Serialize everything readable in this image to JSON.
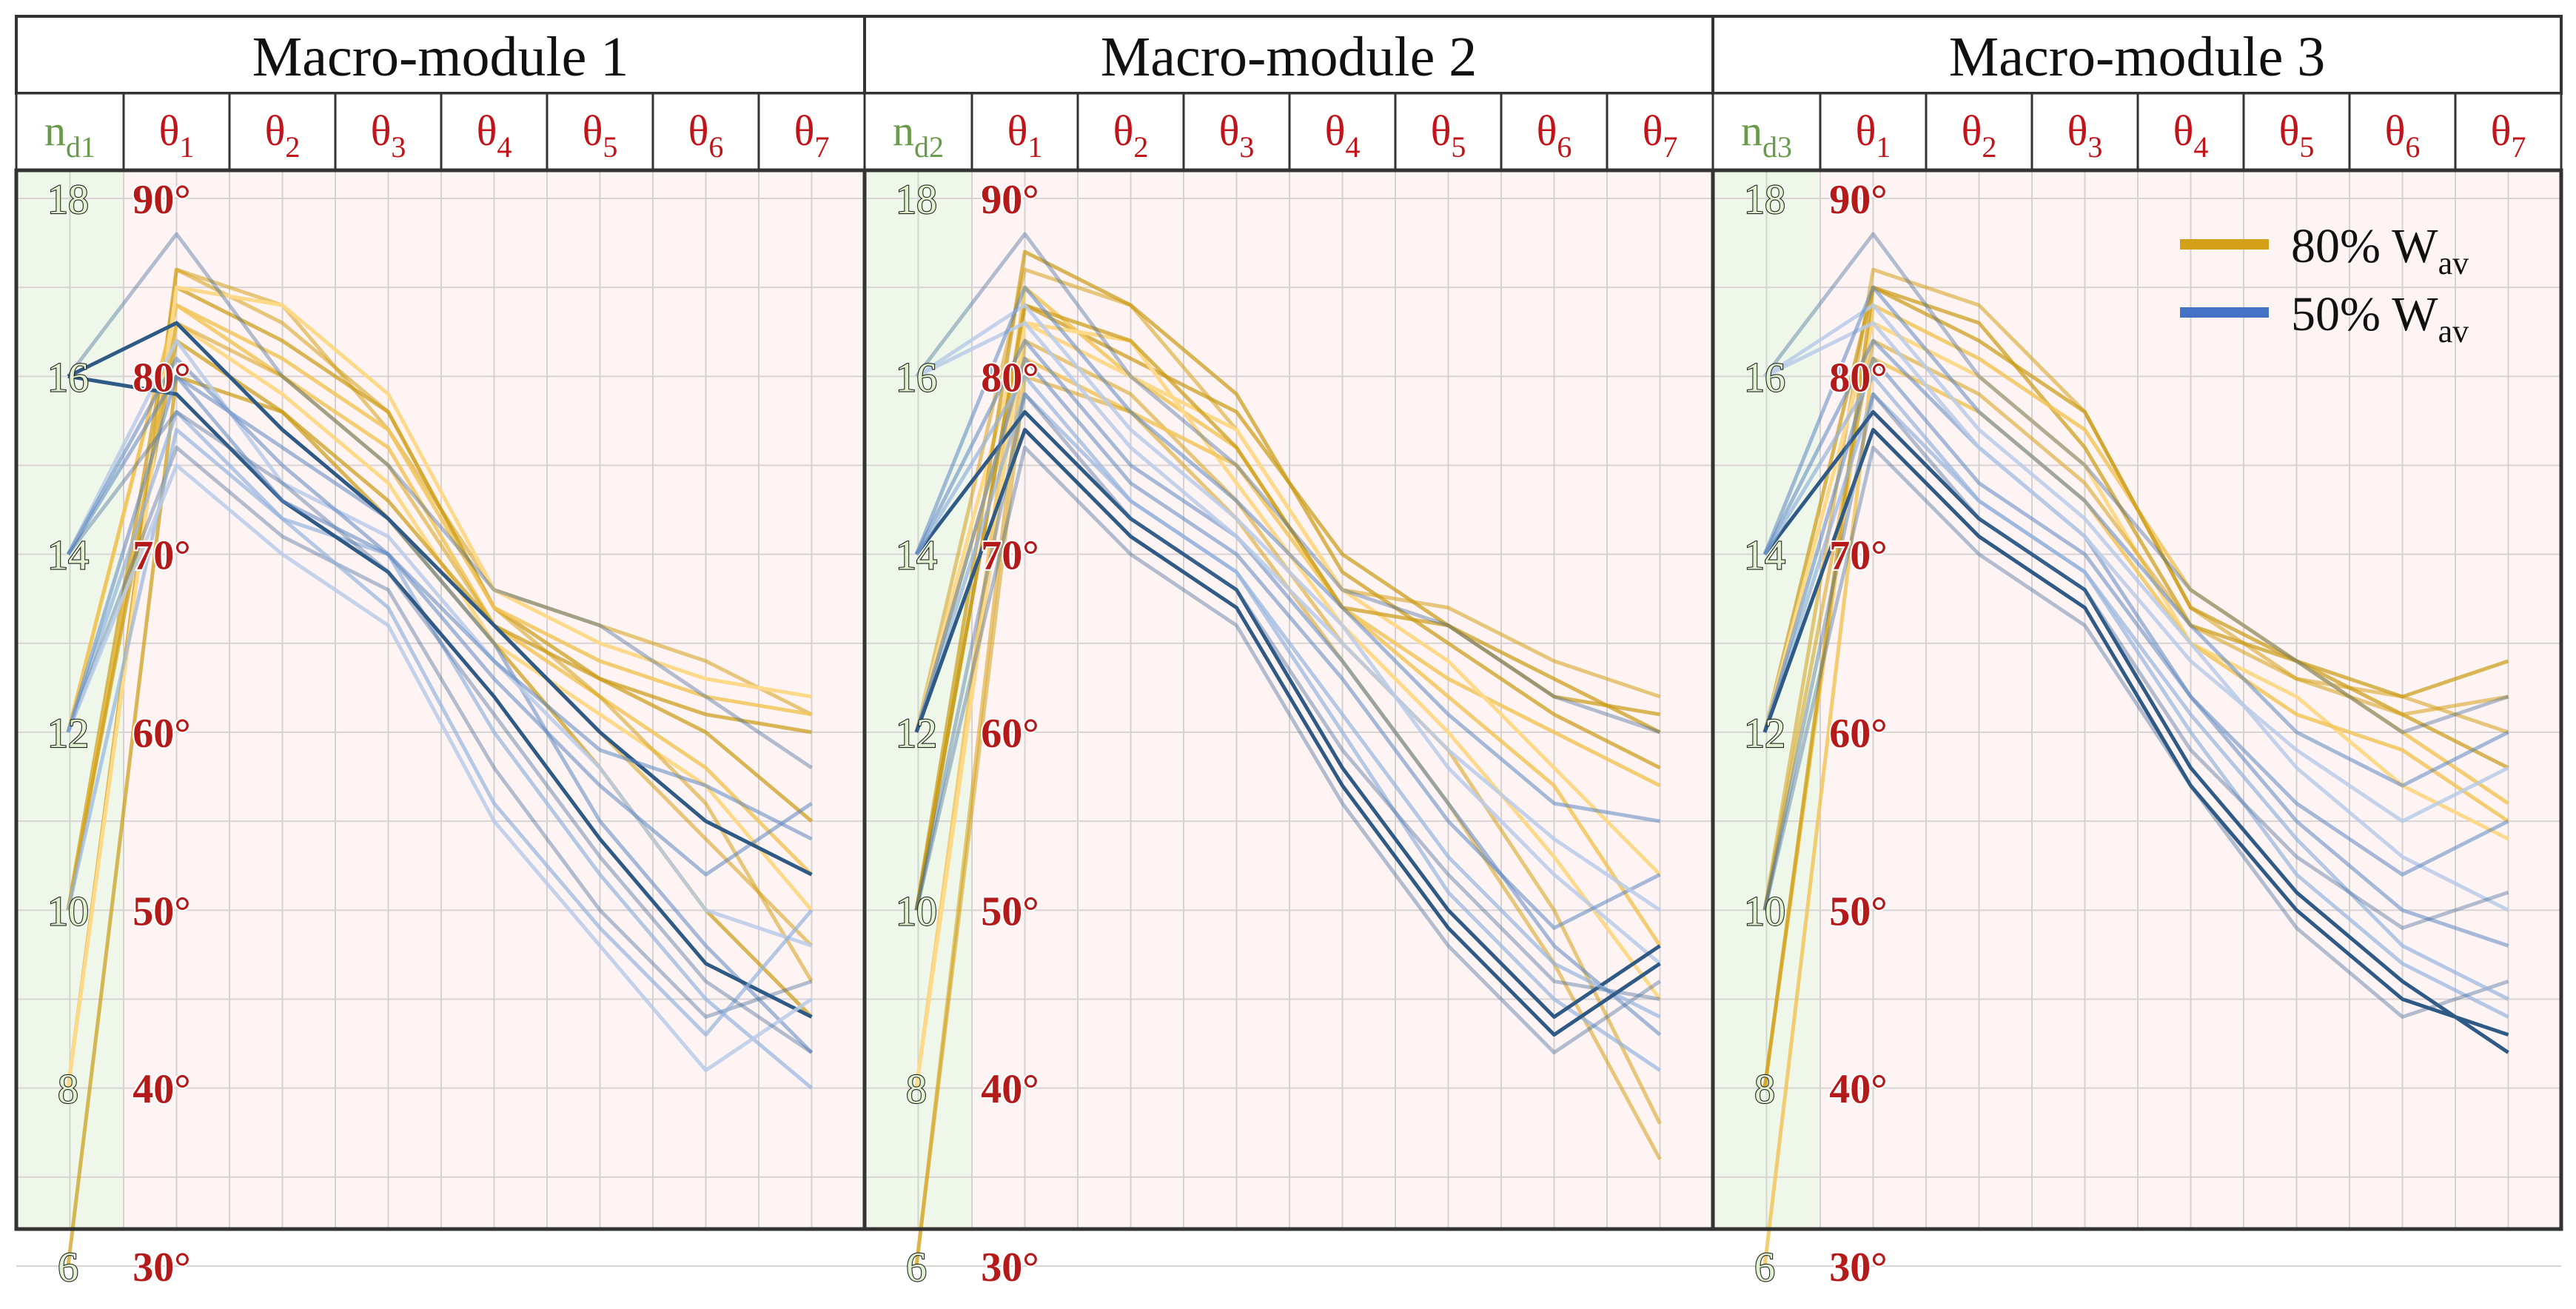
{
  "chart_data": {
    "type": "parallel-coordinates",
    "title": "",
    "panels": [
      {
        "title": "Macro-module 1",
        "first_axis": {
          "base": "n",
          "sub": "d1"
        }
      },
      {
        "title": "Macro-module 2",
        "first_axis": {
          "base": "n",
          "sub": "d2"
        }
      },
      {
        "title": "Macro-module 3",
        "first_axis": {
          "base": "n",
          "sub": "d3"
        }
      }
    ],
    "angle_axes": [
      {
        "base": "θ",
        "sub": "1"
      },
      {
        "base": "θ",
        "sub": "2"
      },
      {
        "base": "θ",
        "sub": "3"
      },
      {
        "base": "θ",
        "sub": "4"
      },
      {
        "base": "θ",
        "sub": "5"
      },
      {
        "base": "θ",
        "sub": "6"
      },
      {
        "base": "θ",
        "sub": "7"
      }
    ],
    "n_ticks": [
      "6",
      "8",
      "10",
      "12",
      "14",
      "16",
      "18"
    ],
    "n_range": [
      6,
      18
    ],
    "angle_ticks": [
      "30°",
      "40°",
      "50°",
      "60°",
      "70°",
      "80°",
      "90°"
    ],
    "angle_range": [
      30,
      90
    ],
    "legend": [
      {
        "label": "80% W",
        "sub": "av",
        "color": "#d4a017"
      },
      {
        "label": "50% W",
        "sub": "av",
        "color": "#4472c4"
      }
    ],
    "series": [
      {
        "name": "80% Wav",
        "color": "#d4a017",
        "panels": [
          [
            [
              8,
              86,
              84,
              77,
              68,
              66,
              64,
              61
            ],
            [
              10,
              85,
              82,
              78,
              67,
              63,
              60,
              55
            ],
            [
              12,
              84,
              80,
              76,
              66,
              62,
              58,
              52
            ],
            [
              10,
              83,
              79,
              74,
              65,
              61,
              57,
              50
            ],
            [
              8,
              86,
              83,
              78,
              67,
              62,
              56,
              46
            ],
            [
              10,
              82,
              78,
              73,
              66,
              63,
              61,
              60
            ],
            [
              12,
              84,
              81,
              77,
              67,
              64,
              62,
              61
            ],
            [
              8,
              85,
              84,
              79,
              68,
              65,
              63,
              62
            ],
            [
              10,
              83,
              80,
              75,
              66,
              60,
              54,
              48
            ],
            [
              6,
              80,
              78,
              72,
              65,
              58,
              50,
              44
            ]
          ],
          [
            [
              12,
              86,
              84,
              77,
              68,
              67,
              64,
              62
            ],
            [
              10,
              84,
              81,
              78,
              70,
              66,
              63,
              60
            ],
            [
              8,
              85,
              80,
              76,
              67,
              62,
              57,
              48
            ],
            [
              12,
              83,
              82,
              74,
              66,
              60,
              53,
              45
            ],
            [
              6,
              82,
              79,
              73,
              65,
              59,
              50,
              38
            ],
            [
              10,
              87,
              84,
              79,
              69,
              65,
              61,
              58
            ],
            [
              12,
              81,
              78,
              75,
              67,
              63,
              60,
              57
            ],
            [
              8,
              83,
              80,
              77,
              68,
              64,
              58,
              52
            ],
            [
              6,
              80,
              78,
              72,
              64,
              56,
              47,
              36
            ],
            [
              10,
              84,
              82,
              76,
              67,
              66,
              62,
              61
            ]
          ],
          [
            [
              10,
              86,
              84,
              78,
              67,
              63,
              62,
              60
            ],
            [
              12,
              85,
              83,
              76,
              66,
              64,
              61,
              58
            ],
            [
              8,
              84,
              81,
              77,
              68,
              64,
              60,
              56
            ],
            [
              12,
              83,
              80,
              75,
              65,
              62,
              57,
              54
            ],
            [
              10,
              82,
              79,
              74,
              66,
              63,
              61,
              62
            ],
            [
              8,
              85,
              82,
              78,
              67,
              64,
              62,
              64
            ],
            [
              6,
              81,
              78,
              73,
              65,
              61,
              59,
              55
            ]
          ]
        ]
      },
      {
        "name": "50% Wav",
        "color": "#4472c4",
        "panels": [
          [
            [
              16,
              88,
              80,
              75,
              68,
              66,
              62,
              58
            ],
            [
              14,
              80,
              76,
              72,
              65,
              55,
              48,
              42
            ],
            [
              12,
              78,
              72,
              70,
              60,
              52,
              45,
              40
            ],
            [
              14,
              82,
              74,
              71,
              64,
              58,
              50,
              48
            ],
            [
              16,
              79,
              73,
              69,
              62,
              54,
              47,
              44
            ],
            [
              12,
              76,
              71,
              68,
              58,
              50,
              44,
              46
            ],
            [
              14,
              81,
              75,
              70,
              63,
              57,
              52,
              56
            ],
            [
              10,
              77,
              72,
              67,
              56,
              49,
              43,
              50
            ],
            [
              12,
              75,
              70,
              66,
              55,
              48,
              41,
              45
            ],
            [
              16,
              83,
              77,
              72,
              66,
              60,
              55,
              52
            ],
            [
              14,
              78,
              74,
              69,
              61,
              53,
              46,
              42
            ],
            [
              12,
              80,
              73,
              70,
              64,
              59,
              57,
              54
            ]
          ],
          [
            [
              16,
              88,
              80,
              75,
              68,
              66,
              62,
              60
            ],
            [
              14,
              82,
              75,
              71,
              64,
              56,
              48,
              43
            ],
            [
              12,
              79,
              73,
              69,
              60,
              51,
              45,
              41
            ],
            [
              16,
              84,
              77,
              72,
              66,
              58,
              52,
              47
            ],
            [
              14,
              78,
              72,
              68,
              58,
              50,
              44,
              48
            ],
            [
              10,
              76,
              70,
              66,
              56,
              48,
              42,
              46
            ],
            [
              12,
              81,
              74,
              70,
              63,
              55,
              49,
              52
            ],
            [
              14,
              80,
              73,
              69,
              61,
              53,
              47,
              44
            ],
            [
              16,
              83,
              76,
              71,
              65,
              59,
              54,
              50
            ],
            [
              12,
              77,
              71,
              67,
              57,
              49,
              43,
              47
            ],
            [
              10,
              79,
              72,
              68,
              59,
              52,
              46,
              45
            ],
            [
              14,
              85,
              78,
              73,
              67,
              61,
              56,
              55
            ]
          ],
          [
            [
              16,
              88,
              80,
              75,
              68,
              64,
              60,
              62
            ],
            [
              14,
              82,
              76,
              71,
              62,
              55,
              50,
              48
            ],
            [
              12,
              79,
              73,
              69,
              60,
              52,
              47,
              44
            ],
            [
              16,
              84,
              77,
              72,
              65,
              58,
              53,
              50
            ],
            [
              14,
              78,
              72,
              68,
              58,
              51,
              46,
              42
            ],
            [
              10,
              76,
              70,
              66,
              57,
              49,
              44,
              46
            ],
            [
              12,
              81,
              74,
              70,
              62,
              56,
              52,
              55
            ],
            [
              14,
              80,
              73,
              69,
              61,
              54,
              48,
              45
            ],
            [
              16,
              83,
              76,
              71,
              64,
              59,
              55,
              58
            ],
            [
              12,
              77,
              71,
              67,
              57,
              50,
              45,
              43
            ],
            [
              10,
              79,
              72,
              68,
              59,
              53,
              49,
              51
            ],
            [
              14,
              85,
              78,
              73,
              66,
              60,
              57,
              60
            ]
          ]
        ]
      }
    ]
  }
}
